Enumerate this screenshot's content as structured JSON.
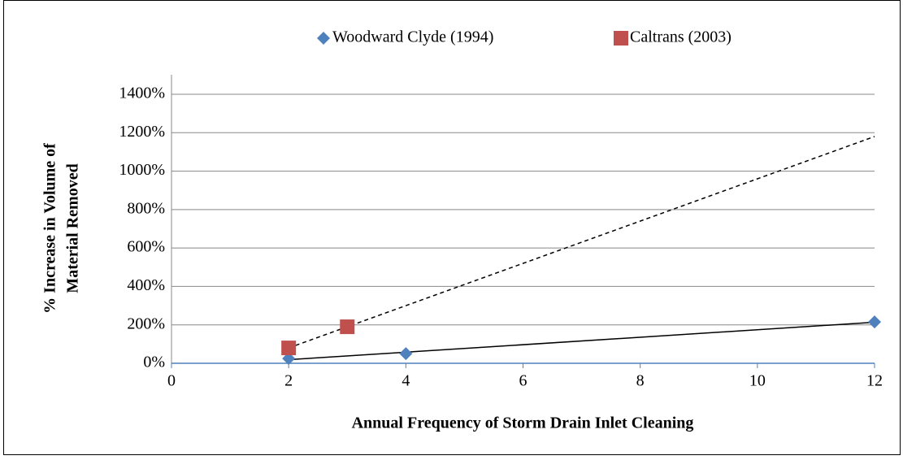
{
  "chart_data": {
    "type": "scatter",
    "x_label": "Annual Frequency of Storm Drain Inlet Cleaning",
    "y_label": [
      "% Increase in Volume of",
      "Material Removed"
    ],
    "series": [
      {
        "name": "Woodward Clyde (1994)",
        "color": "#4f81bd",
        "marker": "diamond",
        "x": [
          2,
          4,
          12
        ],
        "values": [
          25,
          50,
          215
        ],
        "trendline": "linear",
        "trendline_dash": "none"
      },
      {
        "name": "Caltrans (2003)",
        "color": "#c0504d",
        "marker": "square",
        "x": [
          2,
          3
        ],
        "values": [
          80,
          190
        ],
        "trendline": "linear",
        "trendline_dash": "5,4"
      }
    ],
    "xlim": [
      0,
      12
    ],
    "xticks": [
      0,
      2,
      4,
      6,
      8,
      10,
      12
    ],
    "ylim": [
      0,
      1400
    ],
    "yticks": [
      {
        "value": 0,
        "label": "0%"
      },
      {
        "value": 200,
        "label": "200%"
      },
      {
        "value": 400,
        "label": "400%"
      },
      {
        "value": 600,
        "label": "600%"
      },
      {
        "value": 800,
        "label": "800%"
      },
      {
        "value": 1000,
        "label": "1000%"
      },
      {
        "value": 1200,
        "label": "1200%"
      },
      {
        "value": 1400,
        "label": "1400%"
      }
    ],
    "grid": true,
    "legend": "top"
  }
}
